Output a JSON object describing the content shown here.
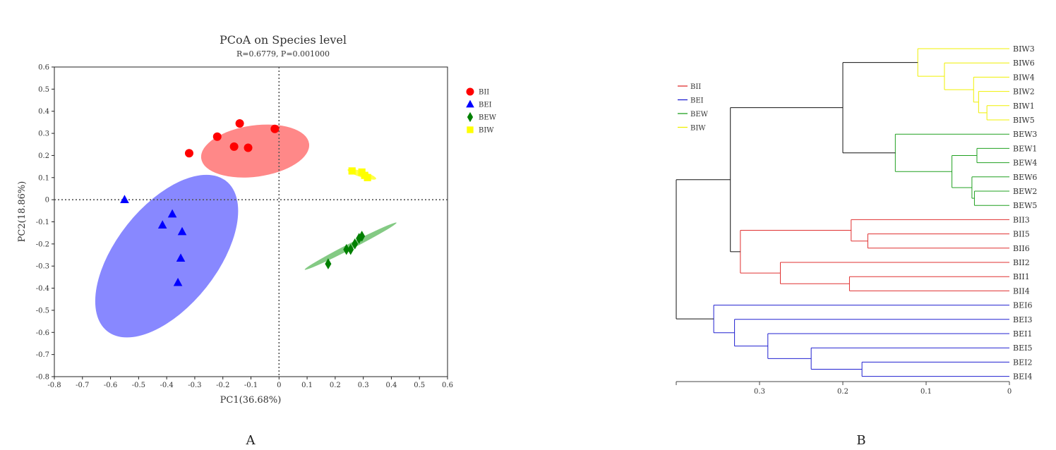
{
  "panel_labels": [
    "A",
    "B"
  ],
  "chart_data": [
    {
      "type": "scatter",
      "title": "PCoA on Species level",
      "subtitle": "R=0.6779, P=0.001000",
      "xlabel": "PC1(36.68%)",
      "ylabel": "PC2(18.86%)",
      "xlim": [
        -0.8,
        0.6
      ],
      "ylim": [
        -0.8,
        0.6
      ],
      "xticks": [
        -0.8,
        -0.7,
        -0.6,
        -0.5,
        -0.4,
        -0.3,
        -0.2,
        -0.1,
        0,
        0.1,
        0.2,
        0.3,
        0.4,
        0.5,
        0.6
      ],
      "yticks": [
        -0.8,
        -0.7,
        -0.6,
        -0.5,
        -0.4,
        -0.3,
        -0.2,
        -0.1,
        0,
        0.1,
        0.2,
        0.3,
        0.4,
        0.5,
        0.6
      ],
      "grid": false,
      "zero_lines": true,
      "legend_position": "right",
      "series": [
        {
          "name": "BII",
          "marker": "circle",
          "color": "#ff0000",
          "fill": "#ff5a5a",
          "x": [
            -0.32,
            -0.22,
            -0.16,
            -0.14,
            -0.11,
            -0.015
          ],
          "y": [
            0.21,
            0.285,
            0.24,
            0.345,
            0.235,
            0.32
          ],
          "ellipse": {
            "cx": -0.085,
            "cy": 0.22,
            "rx": 0.195,
            "ry": 0.115,
            "angle": 10
          }
        },
        {
          "name": "BEI",
          "marker": "triangle",
          "color": "#0000ff",
          "fill": "#5a5aff",
          "x": [
            -0.55,
            -0.415,
            -0.38,
            -0.345,
            -0.35,
            -0.36
          ],
          "y": [
            0.0,
            -0.115,
            -0.065,
            -0.145,
            -0.265,
            -0.375
          ],
          "ellipse": {
            "cx": -0.4,
            "cy": -0.255,
            "rx": 0.4,
            "ry": 0.19,
            "angle": 58
          }
        },
        {
          "name": "BEW",
          "marker": "diamond",
          "color": "#008000",
          "fill": "#55b655",
          "x": [
            0.175,
            0.24,
            0.255,
            0.27,
            0.285,
            0.295
          ],
          "y": [
            -0.29,
            -0.225,
            -0.225,
            -0.2,
            -0.175,
            -0.165
          ],
          "ellipse": {
            "cx": 0.255,
            "cy": -0.21,
            "rx": 0.195,
            "ry": 0.012,
            "angle": 33
          }
        },
        {
          "name": "BIW",
          "marker": "square",
          "color": "#ffff00",
          "fill": "#ffff00",
          "x": [
            0.26,
            0.295,
            0.305,
            0.315
          ],
          "y": [
            0.13,
            0.125,
            0.11,
            0.1
          ],
          "ellipse": {
            "cx": 0.295,
            "cy": 0.115,
            "rx": 0.055,
            "ry": 0.013,
            "angle": -22
          }
        }
      ]
    },
    {
      "type": "dendrogram",
      "xlim": [
        0.4,
        0
      ],
      "xticks": [
        0.3,
        0.2,
        0.1,
        0
      ],
      "legend_position": "top-left",
      "groups": [
        {
          "name": "BII",
          "color": "#e03030"
        },
        {
          "name": "BEI",
          "color": "#2020d0"
        },
        {
          "name": "BEW",
          "color": "#20a020"
        },
        {
          "name": "BIW",
          "color": "#f0f000"
        }
      ],
      "leaves": [
        {
          "label": "BIW3",
          "group": "BIW"
        },
        {
          "label": "BIW6",
          "group": "BIW"
        },
        {
          "label": "BIW4",
          "group": "BIW"
        },
        {
          "label": "BIW2",
          "group": "BIW"
        },
        {
          "label": "BIW1",
          "group": "BIW"
        },
        {
          "label": "BIW5",
          "group": "BIW"
        },
        {
          "label": "BEW3",
          "group": "BEW"
        },
        {
          "label": "BEW1",
          "group": "BEW"
        },
        {
          "label": "BEW4",
          "group": "BEW"
        },
        {
          "label": "BEW6",
          "group": "BEW"
        },
        {
          "label": "BEW2",
          "group": "BEW"
        },
        {
          "label": "BEW5",
          "group": "BEW"
        },
        {
          "label": "BII3",
          "group": "BII"
        },
        {
          "label": "BII5",
          "group": "BII"
        },
        {
          "label": "BII6",
          "group": "BII"
        },
        {
          "label": "BII2",
          "group": "BII"
        },
        {
          "label": "BII1",
          "group": "BII"
        },
        {
          "label": "BII4",
          "group": "BII"
        },
        {
          "label": "BEI6",
          "group": "BEI"
        },
        {
          "label": "BEI3",
          "group": "BEI"
        },
        {
          "label": "BEI1",
          "group": "BEI"
        },
        {
          "label": "BEI5",
          "group": "BEI"
        },
        {
          "label": "BEI2",
          "group": "BEI"
        },
        {
          "label": "BEI4",
          "group": "BEI"
        }
      ],
      "tree": {
        "h": 0.4,
        "c": [
          {
            "h": 0.335,
            "c": [
              {
                "h": 0.2,
                "c": [
                  {
                    "h": 0.11,
                    "g": "BIW",
                    "c": [
                      {
                        "l": 0
                      },
                      {
                        "h": 0.078,
                        "c": [
                          {
                            "l": 1
                          },
                          {
                            "h": 0.043,
                            "c": [
                              {
                                "l": 2
                              },
                              {
                                "h": 0.037,
                                "c": [
                                  {
                                    "l": 3
                                  },
                                  {
                                    "h": 0.027,
                                    "c": [
                                      {
                                        "l": 4
                                      },
                                      {
                                        "l": 5
                                      }
                                    ]
                                  }
                                ]
                              }
                            ]
                          }
                        ]
                      }
                    ]
                  },
                  {
                    "h": 0.137,
                    "g": "BEW",
                    "c": [
                      {
                        "l": 6
                      },
                      {
                        "h": 0.069,
                        "c": [
                          {
                            "h": 0.039,
                            "c": [
                              {
                                "l": 7
                              },
                              {
                                "l": 8
                              }
                            ]
                          },
                          {
                            "h": 0.045,
                            "c": [
                              {
                                "l": 9
                              },
                              {
                                "h": 0.042,
                                "c": [
                                  {
                                    "l": 10
                                  },
                                  {
                                    "l": 11
                                  }
                                ]
                              }
                            ]
                          }
                        ]
                      }
                    ]
                  }
                ]
              },
              {
                "h": 0.323,
                "g": "BII",
                "c": [
                  {
                    "h": 0.19,
                    "c": [
                      {
                        "l": 12
                      },
                      {
                        "h": 0.17,
                        "c": [
                          {
                            "l": 13
                          },
                          {
                            "l": 14
                          }
                        ]
                      }
                    ]
                  },
                  {
                    "h": 0.275,
                    "c": [
                      {
                        "l": 15
                      },
                      {
                        "h": 0.192,
                        "c": [
                          {
                            "l": 16
                          },
                          {
                            "l": 17
                          }
                        ]
                      }
                    ]
                  }
                ]
              }
            ]
          },
          {
            "h": 0.355,
            "g": "BEI",
            "c": [
              {
                "l": 18
              },
              {
                "h": 0.33,
                "c": [
                  {
                    "l": 19
                  },
                  {
                    "h": 0.29,
                    "c": [
                      {
                        "l": 20
                      },
                      {
                        "h": 0.238,
                        "c": [
                          {
                            "l": 21
                          },
                          {
                            "h": 0.177,
                            "c": [
                              {
                                "l": 22
                              },
                              {
                                "l": 23
                              }
                            ]
                          }
                        ]
                      }
                    ]
                  }
                ]
              }
            ]
          }
        ]
      }
    }
  ]
}
